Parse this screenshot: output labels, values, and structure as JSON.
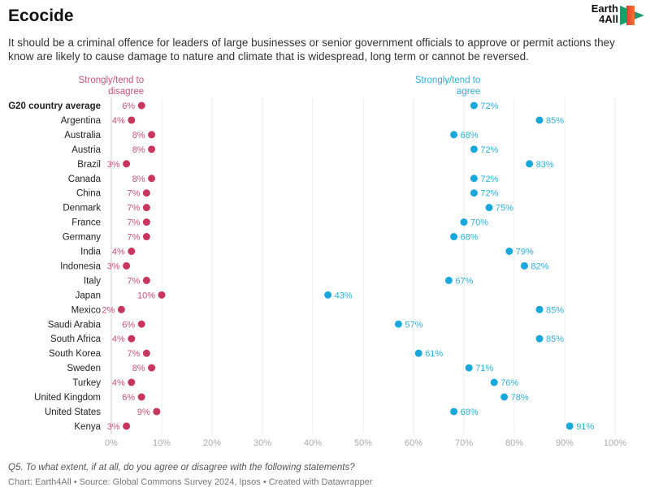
{
  "title": "Ecocide",
  "subtitle": "It should be a criminal offence for leaders of large businesses or senior government officials to approve or permit actions they know are likely to cause damage to nature and climate that is widespread, long term or cannot be reversed.",
  "logo_text": "Earth 4All",
  "note": "Q5. To what extent, if at all, do you agree or disagree with the following statements?",
  "credit": "Chart: Earth4All • Source: Global Commons Survey 2024, Ipsos • Created with Datawrapper",
  "chart_data": {
    "type": "dumbbell",
    "legend_disagree": "Strongly/tend to disagree",
    "legend_agree": "Strongly/tend to agree",
    "colors": {
      "disagree": "#c8365e",
      "agree": "#1aa8dc"
    },
    "xlim": [
      0,
      100
    ],
    "x_ticks": [
      "0%",
      "10%",
      "20%",
      "30%",
      "40%",
      "50%",
      "60%",
      "70%",
      "80%",
      "90%",
      "100%"
    ],
    "grid": true,
    "categories": [
      "G20 country average",
      "Argentina",
      "Australia",
      "Austria",
      "Brazil",
      "Canada",
      "China",
      "Denmark",
      "France",
      "Germany",
      "India",
      "Indonesia",
      "Italy",
      "Japan",
      "Mexico",
      "Saudi Arabia",
      "South Africa",
      "South Korea",
      "Sweden",
      "Turkey",
      "United Kingdom",
      "United States",
      "Kenya"
    ],
    "series": [
      {
        "name": "Strongly/tend to disagree",
        "values": [
          6,
          4,
          8,
          8,
          3,
          8,
          7,
          7,
          7,
          7,
          4,
          3,
          7,
          10,
          2,
          6,
          4,
          7,
          8,
          4,
          6,
          9,
          3
        ]
      },
      {
        "name": "Strongly/tend to agree",
        "values": [
          72,
          85,
          68,
          72,
          83,
          72,
          72,
          75,
          70,
          68,
          79,
          82,
          67,
          43,
          85,
          57,
          85,
          61,
          71,
          76,
          78,
          68,
          91
        ]
      }
    ]
  }
}
